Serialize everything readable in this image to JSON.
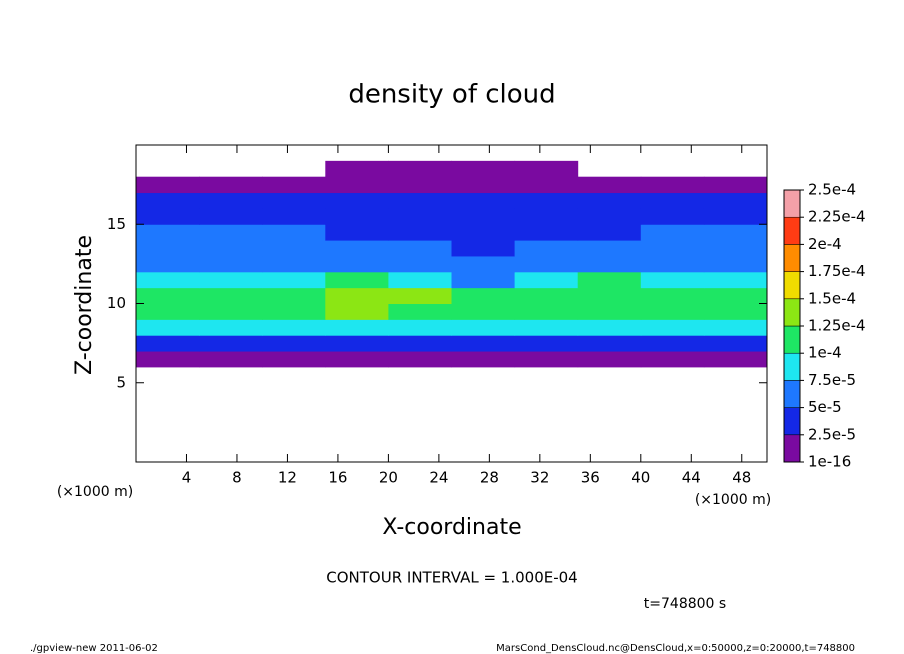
{
  "chart_data": {
    "type": "heatmap",
    "title": "density of cloud",
    "x_label": "X-coordinate",
    "y_label": "Z-coordinate",
    "x_unit": "(×1000 m)",
    "y_unit": "(×1000 m)",
    "annotation": "CONTOUR INTERVAL = 1.000E-04",
    "time_label": "t=748800 s",
    "footer_left": "./gpview-new  2011-06-02",
    "footer_right": "MarsCond_DensCloud.nc@DensCloud,x=0:50000,z=0:20000,t=748800",
    "xlim": [
      0,
      50
    ],
    "ylim": [
      0,
      20
    ],
    "xticks": [
      4,
      8,
      12,
      16,
      20,
      24,
      28,
      32,
      36,
      40,
      44,
      48
    ],
    "yticks": [
      5,
      10,
      15
    ],
    "x": [
      2.5,
      7.5,
      12.5,
      17.5,
      22.5,
      27.5,
      32.5,
      37.5,
      42.5,
      47.5
    ],
    "z": [
      6.5,
      7.5,
      8.5,
      9.5,
      10.5,
      11.5,
      12.5,
      13.5,
      14.5,
      15.5,
      16.5,
      17.5,
      18.5
    ],
    "values": [
      [
        1.5e-05,
        1.5e-05,
        1.5e-05,
        1.5e-05,
        1.5e-05,
        1.5e-05,
        1.5e-05,
        1.5e-05,
        1.5e-05,
        1.5e-05
      ],
      [
        4e-05,
        4.5e-05,
        4.5e-05,
        4e-05,
        4e-05,
        4e-05,
        4e-05,
        4e-05,
        4.5e-05,
        3.5e-05
      ],
      [
        8e-05,
        8.5e-05,
        9e-05,
        9e-05,
        8.5e-05,
        8e-05,
        8.5e-05,
        8.5e-05,
        9e-05,
        8e-05
      ],
      [
        0.000105,
        0.00011,
        0.00012,
        0.000125,
        0.00012,
        0.00011,
        0.000115,
        0.00012,
        0.000115,
        0.000105
      ],
      [
        0.000105,
        0.000105,
        0.00012,
        0.00013,
        0.000125,
        0.00011,
        0.000115,
        0.00012,
        0.00012,
        0.000105
      ],
      [
        8e-05,
        7.5e-05,
        9e-05,
        0.0001,
        9e-05,
        7e-05,
        9e-05,
        0.0001,
        9.5e-05,
        8e-05
      ],
      [
        6e-05,
        5.5e-05,
        6e-05,
        6.5e-05,
        6e-05,
        5.5e-05,
        6e-05,
        6e-05,
        6e-05,
        5.5e-05
      ],
      [
        5e-05,
        5e-05,
        5.5e-05,
        5.5e-05,
        5e-05,
        4.5e-05,
        5e-05,
        5e-05,
        5e-05,
        5e-05
      ],
      [
        5e-05,
        5e-05,
        5e-05,
        4.5e-05,
        4e-05,
        3.5e-05,
        4.5e-05,
        4.5e-05,
        5e-05,
        5e-05
      ],
      [
        4.5e-05,
        4.5e-05,
        4e-05,
        4e-05,
        3.5e-05,
        3e-05,
        4e-05,
        4e-05,
        4.5e-05,
        4.5e-05
      ],
      [
        3e-05,
        3e-05,
        3e-05,
        3e-05,
        3e-05,
        2.5e-05,
        2.5e-05,
        3e-05,
        3e-05,
        3e-05
      ],
      [
        1e-05,
        1e-05,
        1e-05,
        1e-05,
        1e-05,
        1e-05,
        1e-05,
        1e-05,
        1e-05,
        1e-05
      ],
      [
        null,
        null,
        null,
        1e-16,
        1e-16,
        1e-16,
        1e-16,
        null,
        null,
        null
      ]
    ],
    "levels": [
      {
        "value": 1e-16,
        "label": "1e-16"
      },
      {
        "value": 2.5e-05,
        "label": "2.5e-5"
      },
      {
        "value": 5e-05,
        "label": "5e-5"
      },
      {
        "value": 7.5e-05,
        "label": "7.5e-5"
      },
      {
        "value": 0.0001,
        "label": "1e-4"
      },
      {
        "value": 0.000125,
        "label": "1.25e-4"
      },
      {
        "value": 0.00015,
        "label": "1.5e-4"
      },
      {
        "value": 0.000175,
        "label": "1.75e-4"
      },
      {
        "value": 0.0002,
        "label": "2e-4"
      },
      {
        "value": 0.000225,
        "label": "2.25e-4"
      },
      {
        "value": 0.00025,
        "label": "2.5e-4"
      }
    ],
    "colors": [
      "#7a0aa0",
      "#1428e6",
      "#1e78ff",
      "#1ee6f0",
      "#1ee664",
      "#8ce614",
      "#f0dc00",
      "#ff8c00",
      "#ff3c14",
      "#f4a0a8"
    ]
  }
}
